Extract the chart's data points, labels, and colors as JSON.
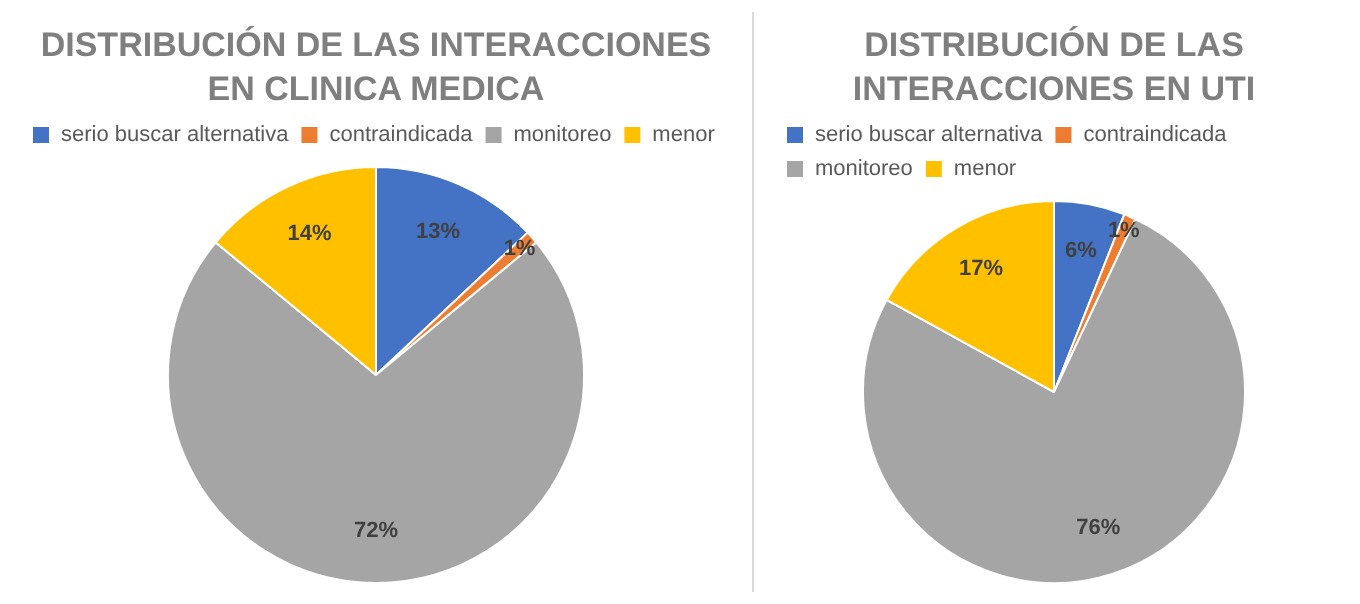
{
  "chart_data": [
    {
      "type": "pie",
      "title": "DISTRIBUCIÓN DE LAS INTERACCIONES EN CLINICA MEDICA",
      "categories": [
        "serio buscar alternativa",
        "contraindicada",
        "monitoreo",
        "menor"
      ],
      "values": [
        13,
        1,
        72,
        14
      ],
      "colors": [
        "#4472c4",
        "#ed7d31",
        "#a5a5a5",
        "#ffc000"
      ],
      "value_labels": [
        "13%",
        "1%",
        "72%",
        "14%"
      ],
      "legend": "top"
    },
    {
      "type": "pie",
      "title": "DISTRIBUCIÓN DE LAS INTERACCIONES EN UTI",
      "categories": [
        "serio buscar alternativa",
        "contraindicada",
        "monitoreo",
        "menor"
      ],
      "values": [
        6,
        1,
        76,
        17
      ],
      "colors": [
        "#4472c4",
        "#ed7d31",
        "#a5a5a5",
        "#ffc000"
      ],
      "value_labels": [
        "6%",
        "1%",
        "76%",
        "17%"
      ],
      "legend": "top"
    }
  ]
}
